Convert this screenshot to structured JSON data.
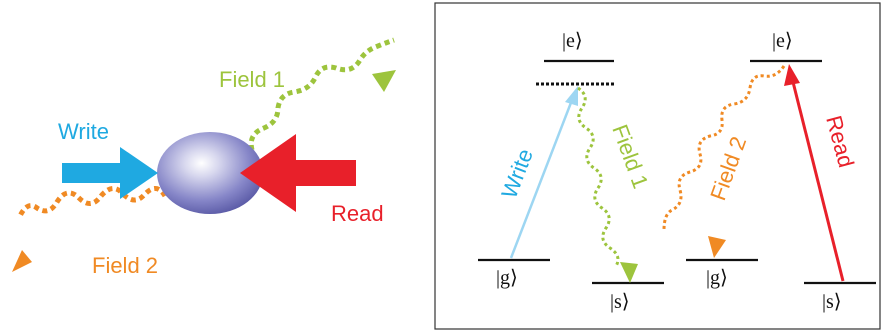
{
  "colors": {
    "write": "#1fa9e1",
    "write_light": "#9dd6f2",
    "read": "#e8202a",
    "field1": "#9dc43d",
    "field2": "#f08a24",
    "atom": "#7c7cc4",
    "level_line": "#111111",
    "frame": "#333333"
  },
  "left_panel": {
    "labels": {
      "write": "Write",
      "read": "Read",
      "field1": "Field 1",
      "field2": "Field 2"
    }
  },
  "right_panel": {
    "left_scheme": {
      "excited_label": "|e⟩",
      "ground_label": "|g⟩",
      "storage_label": "|s⟩",
      "pump_label": "Write",
      "emission_label": "Field 1"
    },
    "right_scheme": {
      "excited_label": "|e⟩",
      "ground_label": "|g⟩",
      "storage_label": "|s⟩",
      "pump_label": "Read",
      "emission_label": "Field 2"
    }
  }
}
